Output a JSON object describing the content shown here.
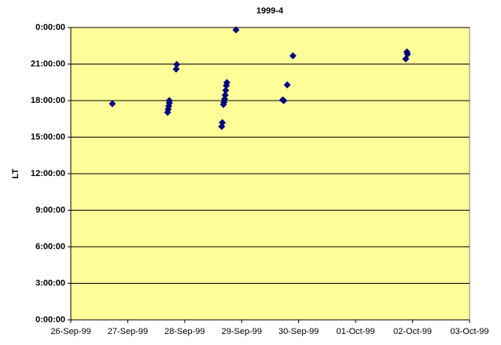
{
  "chart_data": {
    "type": "scatter",
    "title": "1999-4",
    "y_label": "LT",
    "color": "#000080",
    "plot_background": "#ffff99",
    "grid": true,
    "x": [
      36429.73,
      36430.7,
      36430.71,
      36430.72,
      36430.73,
      36430.73,
      36430.85,
      36430.86,
      36431.65,
      36431.66,
      36431.68,
      36431.69,
      36431.7,
      36431.71,
      36431.72,
      36431.73,
      36431.74,
      36431.9,
      36432.72,
      36432.74,
      36432.8,
      36432.9,
      36434.88,
      36434.9,
      36434.91
    ],
    "values": [
      17.74,
      17.03,
      17.29,
      17.55,
      17.81,
      18.0,
      20.58,
      20.97,
      15.87,
      16.19,
      17.68,
      17.87,
      18.13,
      18.45,
      18.84,
      19.23,
      19.48,
      23.81,
      18.06,
      18.0,
      19.29,
      21.68,
      21.42,
      22.0,
      21.81
    ],
    "xlim": [
      36429,
      36436
    ],
    "xticks": [
      {
        "value": 36429,
        "label": "26-Sep-99"
      },
      {
        "value": 36430,
        "label": "27-Sep-99"
      },
      {
        "value": 36431,
        "label": "28-Sep-99"
      },
      {
        "value": 36432,
        "label": "29-Sep-99"
      },
      {
        "value": 36433,
        "label": "30-Sep-99"
      },
      {
        "value": 36434,
        "label": "01-Oct-99"
      },
      {
        "value": 36435,
        "label": "02-Oct-99"
      },
      {
        "value": 36436,
        "label": "03-Oct-99"
      }
    ],
    "ylim": [
      0,
      24
    ],
    "yticks": [
      {
        "value": 0,
        "label": "0:00:00"
      },
      {
        "value": 3,
        "label": "3:00:00"
      },
      {
        "value": 6,
        "label": "6:00:00"
      },
      {
        "value": 9,
        "label": "9:00:00"
      },
      {
        "value": 12,
        "label": "12:00:00"
      },
      {
        "value": 15,
        "label": "15:00:00"
      },
      {
        "value": 18,
        "label": "18:00:00"
      },
      {
        "value": 21,
        "label": "21:00:00"
      },
      {
        "value": 24,
        "label": "0:00:00"
      }
    ]
  }
}
